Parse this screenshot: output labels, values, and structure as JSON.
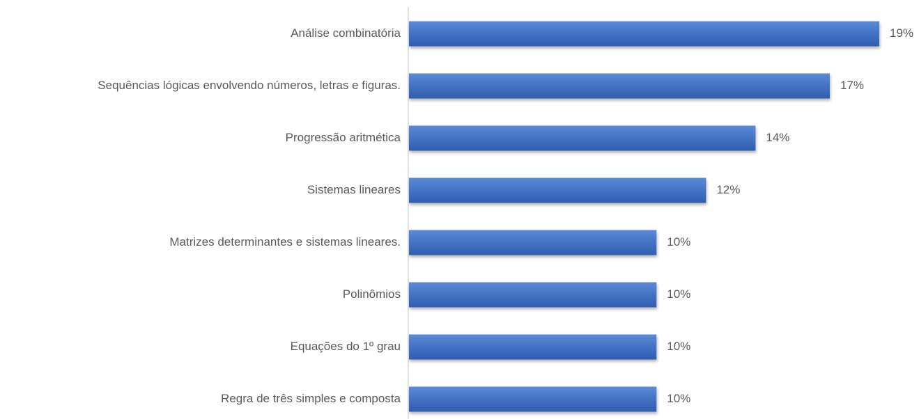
{
  "chart_data": {
    "type": "bar",
    "orientation": "horizontal",
    "categories": [
      "Análise combinatória",
      "Sequências lógicas envolvendo números, letras e figuras.",
      "Progressão aritmética",
      "Sistemas lineares",
      "Matrizes determinantes e sistemas lineares.",
      "Polinômios",
      "Equações do 1º grau",
      "Regra de três simples e composta"
    ],
    "values": [
      19,
      17,
      14,
      12,
      10,
      10,
      10,
      10
    ],
    "value_labels": [
      "19%",
      "17%",
      "14%",
      "12%",
      "10%",
      "10%",
      "10%",
      "10%"
    ],
    "color": "#4472c4"
  }
}
